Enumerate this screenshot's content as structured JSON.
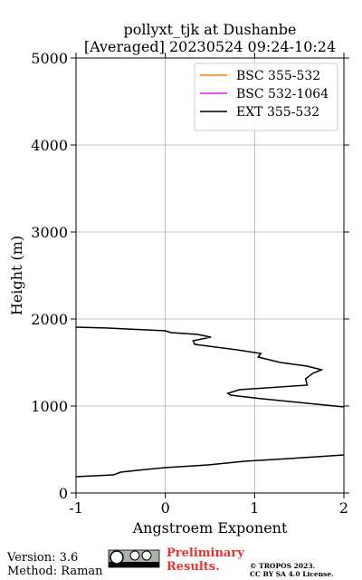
{
  "chart_data": {
    "type": "line",
    "title": "pollyxt_tjk at Dushanbe",
    "subtitle": "[Averaged] 20230524 09:24-10:24",
    "x_label": "Angstroem Exponent",
    "y_label": "Height (m)",
    "xlim": [
      -1,
      2
    ],
    "xticks": [
      -1,
      0,
      1,
      2
    ],
    "ylim": [
      0,
      5000
    ],
    "yticks": [
      0,
      1000,
      2000,
      3000,
      4000,
      5000
    ],
    "grid": true,
    "legend": "upper right",
    "series": [
      {
        "name": "BSC 355-532",
        "color": "#ff7f0e",
        "x": [],
        "y": []
      },
      {
        "name": "BSC 532-1064",
        "color": "#e31ee3",
        "x": [],
        "y": []
      },
      {
        "name": "EXT 355-532",
        "color": "#000000",
        "x": [
          -1.0,
          -0.58,
          -0.5,
          -0.23,
          0,
          0.48,
          0.88,
          1.39,
          2.0,
          null,
          2.0,
          1.49,
          1.08,
          0.73,
          0.7,
          0.83,
          1.59,
          1.57,
          1.65,
          1.75,
          1.59,
          1.29,
          1.04,
          1.07,
          0.8,
          0.33,
          0.31,
          0.51,
          0.36,
          0.06,
          0,
          -0.64,
          -1.0
        ],
        "y": [
          187,
          208,
          240,
          270,
          292,
          323,
          365,
          396,
          437,
          null,
          990,
          1042,
          1083,
          1125,
          1146,
          1187,
          1240,
          1313,
          1375,
          1417,
          1458,
          1500,
          1562,
          1604,
          1646,
          1708,
          1750,
          1792,
          1823,
          1844,
          1865,
          1896,
          1906
        ]
      }
    ]
  },
  "footer": {
    "version": "Version: 3.6",
    "method": "Method: Raman",
    "status": "Preliminary Results.",
    "copyright": "© TROPOS 2023.",
    "license": "CC BY SA 4.0 License."
  }
}
